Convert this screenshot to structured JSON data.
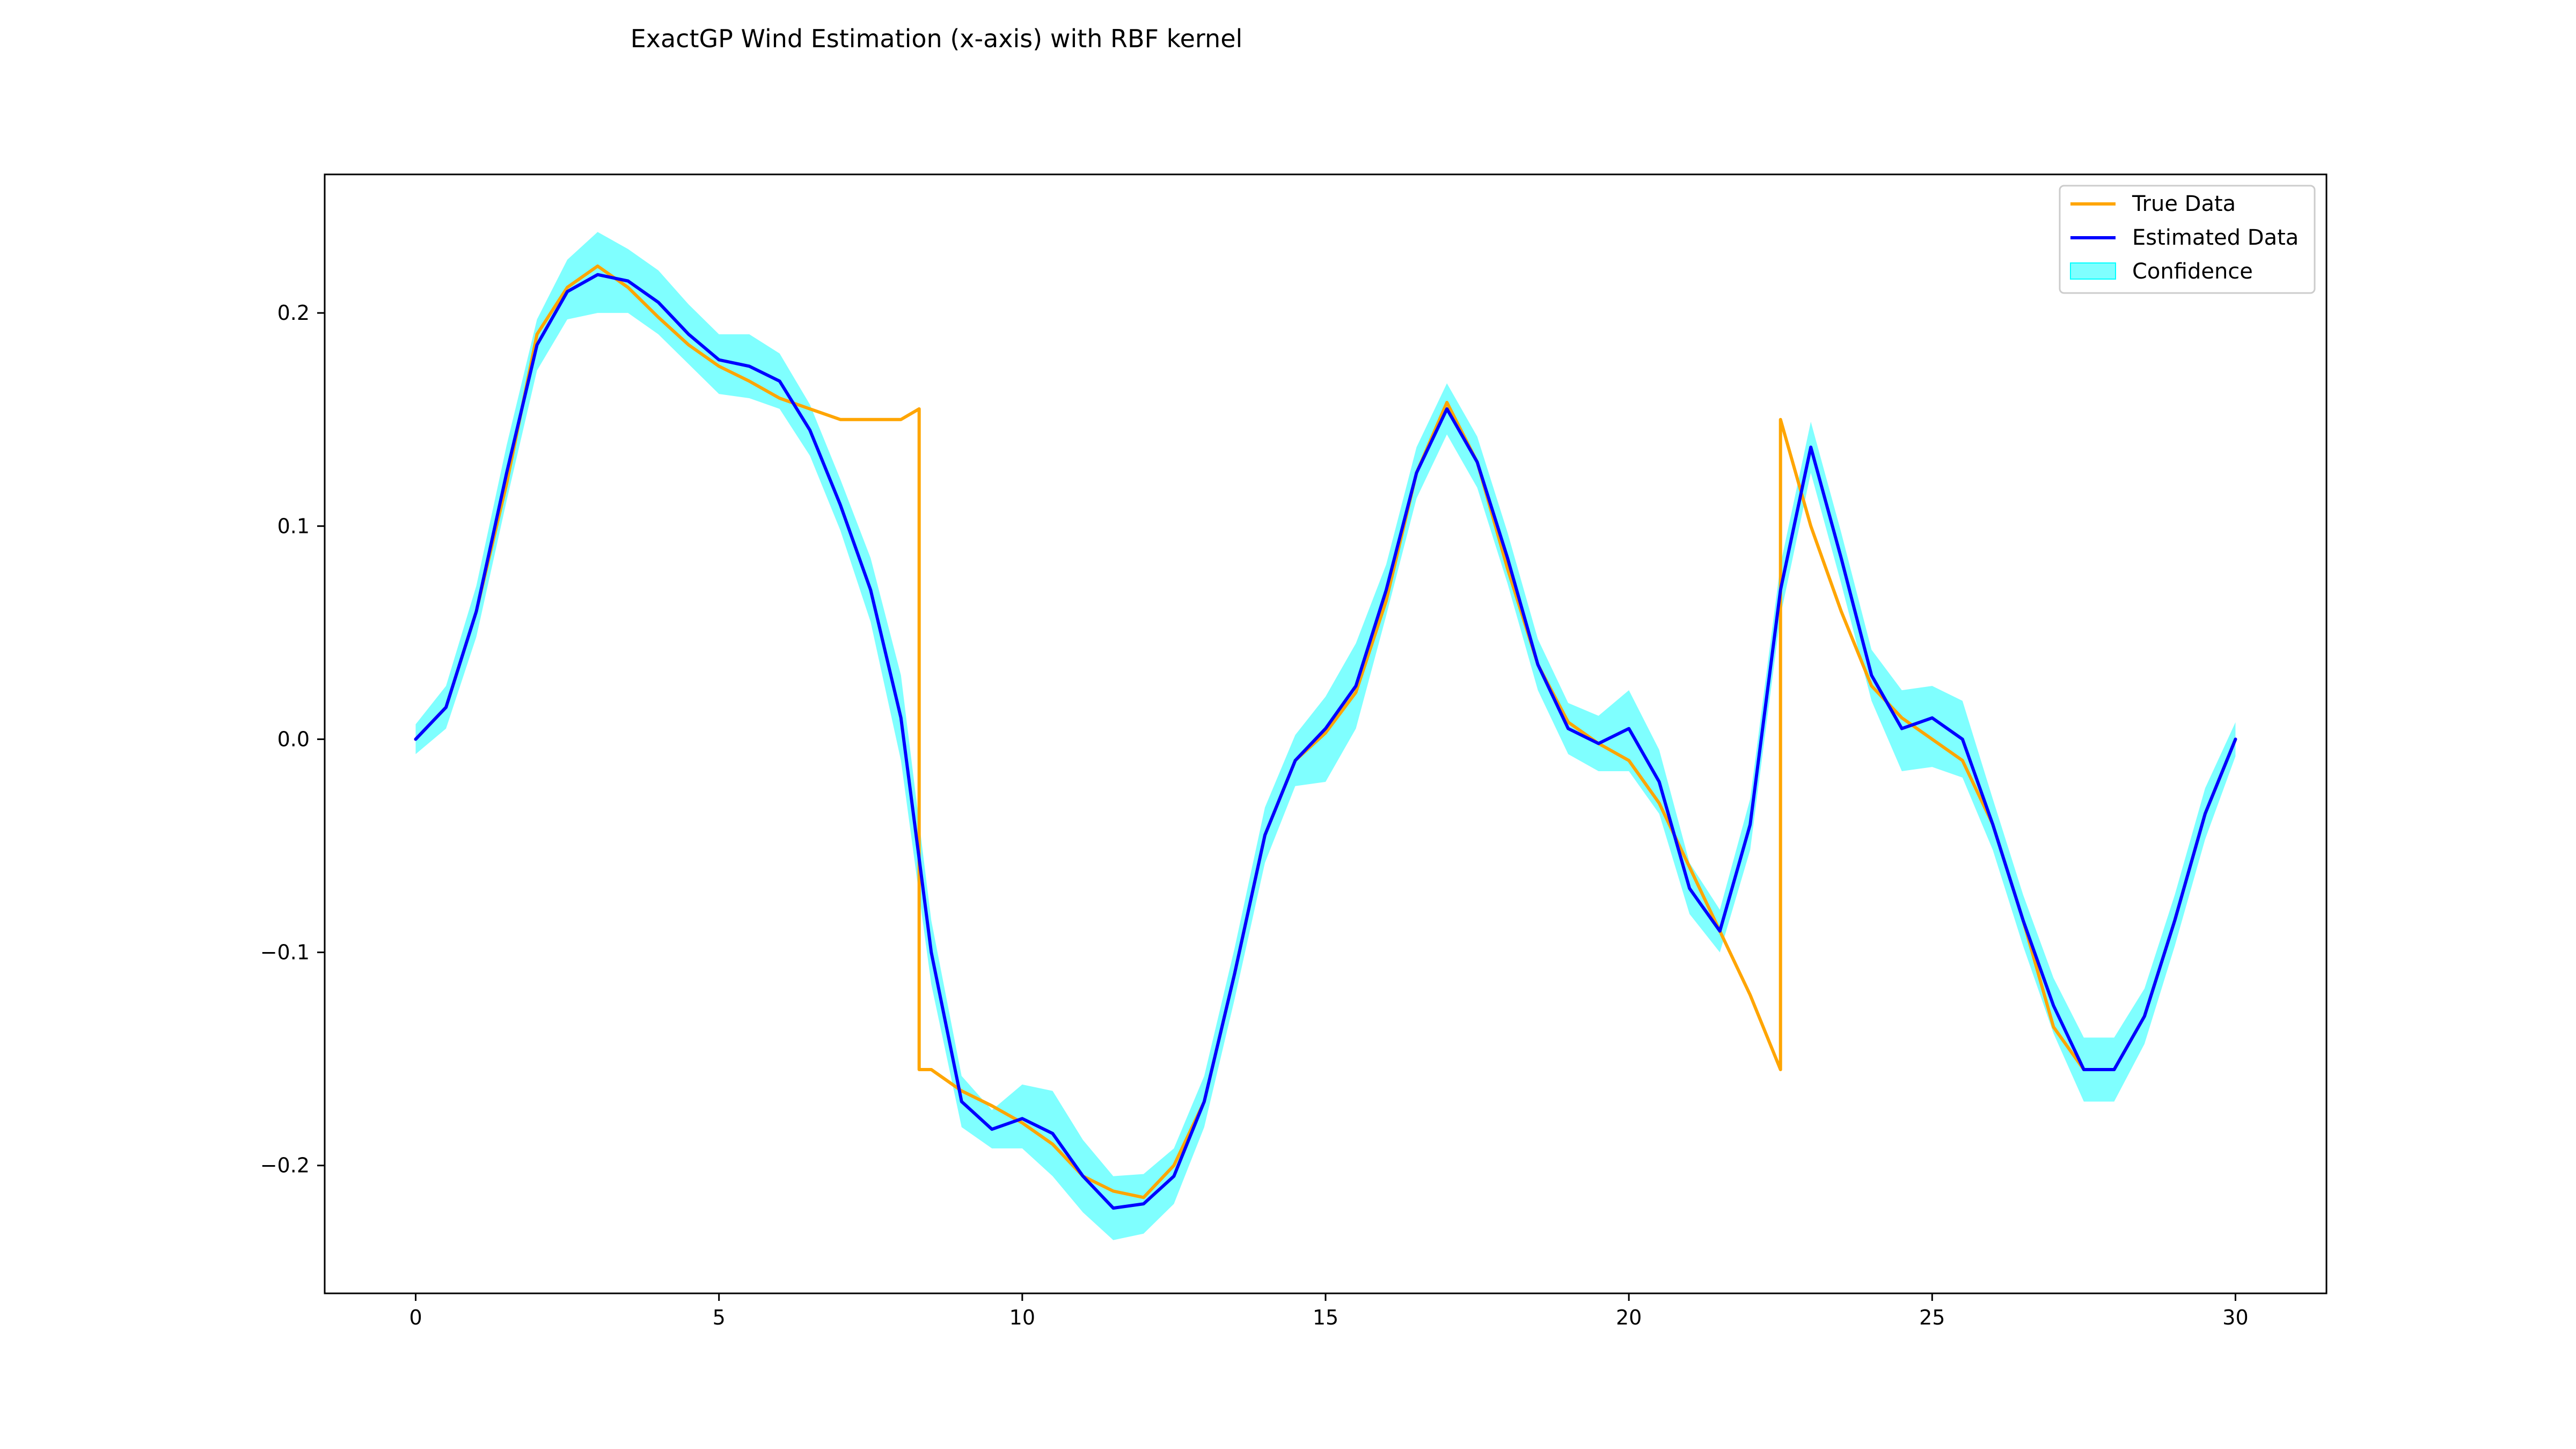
{
  "chart_data": {
    "type": "line",
    "title": "ExactGP Wind Estimation (x-axis) with RBF kernel",
    "xlabel": "",
    "ylabel": "",
    "xlim": [
      -1.5,
      31.5
    ],
    "ylim": [
      -0.26,
      0.265
    ],
    "x_ticks": [
      0,
      5,
      10,
      15,
      20,
      25,
      30
    ],
    "y_ticks": [
      -0.2,
      -0.1,
      0.0,
      0.1,
      0.2
    ],
    "x_tick_labels": [
      "0",
      "5",
      "10",
      "15",
      "20",
      "25",
      "30"
    ],
    "y_tick_labels": [
      "−0.2",
      "−0.1",
      "0.0",
      "0.1",
      "0.2"
    ],
    "grid": false,
    "legend_position": "top-right",
    "legend": [
      "True Data",
      "Estimated Data",
      "Confidence"
    ],
    "colors": {
      "true": "#ffa500",
      "estimated": "#0000ff",
      "confidence": "#00ffff"
    },
    "series": [
      {
        "name": "True Data",
        "x": [
          0,
          0.5,
          1.0,
          1.5,
          2.0,
          2.5,
          3.0,
          3.5,
          4.0,
          4.5,
          5.0,
          5.5,
          6.0,
          6.5,
          7.0,
          7.5,
          8.0,
          8.3,
          8.3,
          8.5,
          9.0,
          9.5,
          10.0,
          10.5,
          11.0,
          11.5,
          12.0,
          12.5,
          13.0,
          13.5,
          14.0,
          14.5,
          15.0,
          15.5,
          16.0,
          16.5,
          17.0,
          17.5,
          18.0,
          18.5,
          19.0,
          19.5,
          20.0,
          20.5,
          21.0,
          21.5,
          22.0,
          22.5,
          22.5,
          23.0,
          23.5,
          24.0,
          24.5,
          25.0,
          25.5,
          26.0,
          26.5,
          27.0,
          27.5,
          28.0,
          28.5,
          29.0,
          29.5,
          30.0
        ],
        "values": [
          0.0,
          0.015,
          0.06,
          0.12,
          0.19,
          0.212,
          0.222,
          0.212,
          0.198,
          0.185,
          0.175,
          0.168,
          0.16,
          0.155,
          0.15,
          0.15,
          0.15,
          0.155,
          -0.155,
          -0.155,
          -0.165,
          -0.172,
          -0.18,
          -0.19,
          -0.205,
          -0.212,
          -0.215,
          -0.2,
          -0.17,
          -0.11,
          -0.045,
          -0.01,
          0.003,
          0.022,
          0.065,
          0.125,
          0.158,
          0.13,
          0.08,
          0.035,
          0.008,
          -0.002,
          -0.01,
          -0.03,
          -0.06,
          -0.09,
          -0.12,
          -0.155,
          0.15,
          0.1,
          0.06,
          0.025,
          0.01,
          0.0,
          -0.01,
          -0.04,
          -0.085,
          -0.135,
          -0.155,
          -0.155,
          -0.13,
          -0.085,
          -0.035,
          0.0
        ]
      },
      {
        "name": "Estimated Data",
        "x": [
          0,
          0.5,
          1.0,
          1.5,
          2.0,
          2.5,
          3.0,
          3.5,
          4.0,
          4.5,
          5.0,
          5.5,
          6.0,
          6.5,
          7.0,
          7.5,
          8.0,
          8.5,
          9.0,
          9.5,
          10.0,
          10.5,
          11.0,
          11.5,
          12.0,
          12.5,
          13.0,
          13.5,
          14.0,
          14.5,
          15.0,
          15.5,
          16.0,
          16.5,
          17.0,
          17.5,
          18.0,
          18.5,
          19.0,
          19.5,
          20.0,
          20.5,
          21.0,
          21.5,
          22.0,
          22.5,
          23.0,
          23.5,
          24.0,
          24.5,
          25.0,
          25.5,
          26.0,
          26.5,
          27.0,
          27.5,
          28.0,
          28.5,
          29.0,
          29.5,
          30.0
        ],
        "values": [
          0.0,
          0.015,
          0.06,
          0.125,
          0.185,
          0.21,
          0.218,
          0.215,
          0.205,
          0.19,
          0.178,
          0.175,
          0.168,
          0.145,
          0.11,
          0.07,
          0.01,
          -0.1,
          -0.17,
          -0.183,
          -0.178,
          -0.185,
          -0.205,
          -0.22,
          -0.218,
          -0.205,
          -0.17,
          -0.11,
          -0.045,
          -0.01,
          0.005,
          0.025,
          0.07,
          0.125,
          0.155,
          0.13,
          0.085,
          0.035,
          0.005,
          -0.002,
          0.005,
          -0.02,
          -0.07,
          -0.09,
          -0.04,
          0.07,
          0.137,
          0.085,
          0.03,
          0.005,
          0.01,
          0.0,
          -0.04,
          -0.085,
          -0.125,
          -0.155,
          -0.155,
          -0.13,
          -0.085,
          -0.035,
          0.0
        ]
      },
      {
        "name": "Confidence",
        "x": [
          0,
          0.5,
          1.0,
          1.5,
          2.0,
          2.5,
          3.0,
          3.5,
          4.0,
          4.5,
          5.0,
          5.5,
          6.0,
          6.5,
          7.0,
          7.5,
          8.0,
          8.5,
          9.0,
          9.5,
          10.0,
          10.5,
          11.0,
          11.5,
          12.0,
          12.5,
          13.0,
          13.5,
          14.0,
          14.5,
          15.0,
          15.5,
          16.0,
          16.5,
          17.0,
          17.5,
          18.0,
          18.5,
          19.0,
          19.5,
          20.0,
          20.5,
          21.0,
          21.5,
          22.0,
          22.5,
          23.0,
          23.5,
          24.0,
          24.5,
          25.0,
          25.5,
          26.0,
          26.5,
          27.0,
          27.5,
          28.0,
          28.5,
          29.0,
          29.5,
          30.0
        ],
        "lower": [
          -0.007,
          0.005,
          0.048,
          0.112,
          0.173,
          0.197,
          0.2,
          0.2,
          0.19,
          0.176,
          0.162,
          0.16,
          0.155,
          0.133,
          0.098,
          0.055,
          -0.01,
          -0.115,
          -0.182,
          -0.192,
          -0.192,
          -0.205,
          -0.222,
          -0.235,
          -0.232,
          -0.218,
          -0.182,
          -0.122,
          -0.058,
          -0.022,
          -0.02,
          0.005,
          0.058,
          0.113,
          0.143,
          0.118,
          0.073,
          0.023,
          -0.007,
          -0.015,
          -0.015,
          -0.035,
          -0.082,
          -0.1,
          -0.052,
          0.058,
          0.125,
          0.073,
          0.018,
          -0.015,
          -0.013,
          -0.018,
          -0.052,
          -0.097,
          -0.138,
          -0.17,
          -0.17,
          -0.143,
          -0.097,
          -0.047,
          -0.008
        ],
        "upper": [
          0.007,
          0.025,
          0.072,
          0.138,
          0.197,
          0.225,
          0.238,
          0.23,
          0.22,
          0.204,
          0.19,
          0.19,
          0.181,
          0.157,
          0.122,
          0.085,
          0.03,
          -0.085,
          -0.158,
          -0.174,
          -0.162,
          -0.165,
          -0.188,
          -0.205,
          -0.204,
          -0.192,
          -0.158,
          -0.098,
          -0.032,
          0.002,
          0.02,
          0.045,
          0.082,
          0.137,
          0.167,
          0.142,
          0.097,
          0.047,
          0.017,
          0.011,
          0.023,
          -0.005,
          -0.058,
          -0.08,
          -0.028,
          0.082,
          0.149,
          0.097,
          0.042,
          0.023,
          0.025,
          0.018,
          -0.028,
          -0.073,
          -0.112,
          -0.14,
          -0.14,
          -0.117,
          -0.073,
          -0.023,
          0.008
        ]
      }
    ]
  }
}
